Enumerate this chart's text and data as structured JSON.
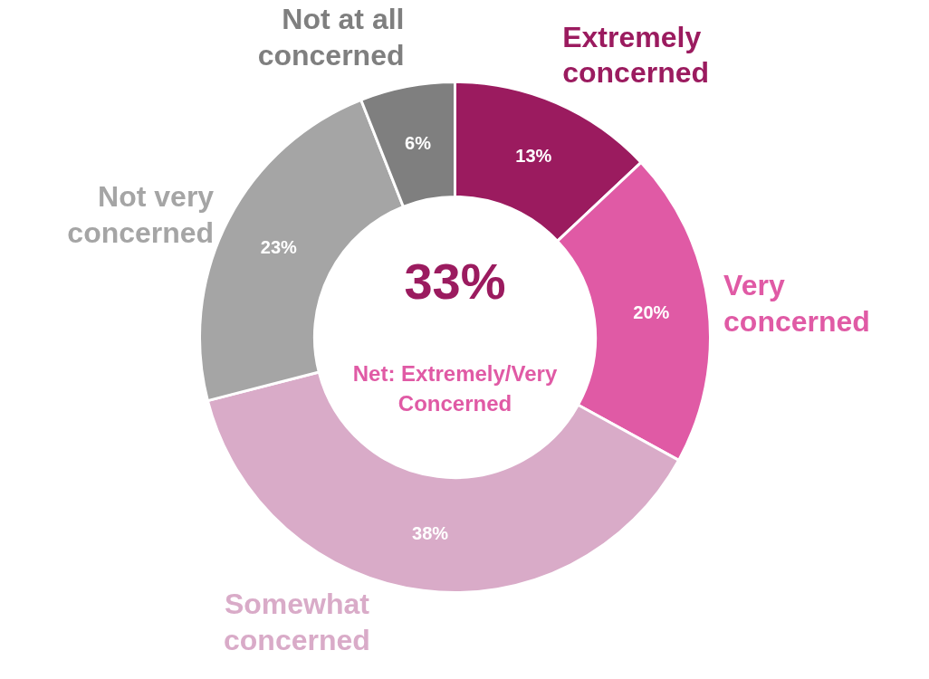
{
  "chart_data": {
    "type": "donut",
    "categories": [
      "Extremely concerned",
      "Very concerned",
      "Somewhat concerned",
      "Not very concerned",
      "Not at all concerned"
    ],
    "values": [
      13,
      20,
      38,
      23,
      6
    ],
    "value_labels": [
      "13%",
      "20%",
      "38%",
      "23%",
      "6%"
    ],
    "colors": [
      "#9b1b5f",
      "#e05aa5",
      "#d9abc8",
      "#a5a5a5",
      "#7f7f7f"
    ],
    "annotations": [
      "33%",
      "Net: Extremely/Very Concerned"
    ]
  }
}
